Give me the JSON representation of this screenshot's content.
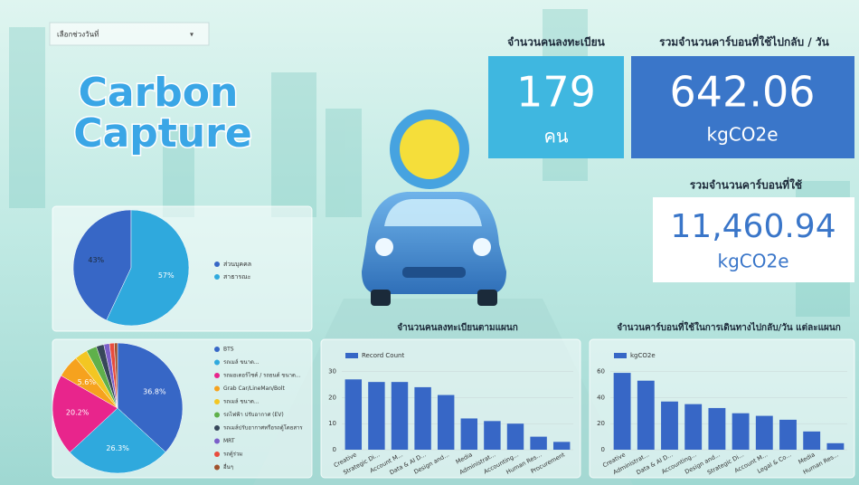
{
  "filter": {
    "label": "เลือกช่วงวันที่"
  },
  "logo": {
    "line1": "Carbon",
    "line2": "Capture"
  },
  "kpis": [
    {
      "title": "จำนวนคนลงทะเบียน",
      "value": "179",
      "unit": "คน"
    },
    {
      "title": "รวมจำนวนคาร์บอนที่ใช้ไปกลับ / วัน",
      "value": "642.06",
      "unit": "kgCO2e"
    },
    {
      "title": "รวมจำนวนคาร์บอนที่ใช้",
      "value": "11,460.94",
      "unit": "kgCO2e"
    }
  ],
  "chart_data": [
    {
      "type": "pie",
      "categories": [
        "ส่วนบุคคล",
        "สาธารณะ"
      ],
      "values": [
        43,
        57
      ],
      "value_labels": [
        "43%",
        "57%"
      ],
      "colors": [
        "#3767c6",
        "#2fa9dd"
      ],
      "clockwise": false
    },
    {
      "type": "pie",
      "categories": [
        "BTS",
        "รถเมล์ ขนาด...",
        "รถมอเตอร์ไซค์ / รถยนต์ ขนาด...",
        "Grab Car/LineMan/Bolt",
        "รถเมล์ ขนาด...",
        "รถไฟฟ้า ปรับอากาศ (EV)",
        "รถเมล์ปรับอากาศหรือรถตู้โดยสาร",
        "MRT",
        "รถตู้ร่วม",
        "อื่นๆ"
      ],
      "values": [
        36.8,
        26.3,
        20.2,
        5.6,
        3.2,
        2.6,
        1.9,
        1.4,
        1.2,
        0.8
      ],
      "value_labels": [
        "36.8%",
        "26.3%",
        "20.2%",
        "5.6%",
        null,
        null,
        null,
        null,
        null,
        null
      ],
      "colors": [
        "#3767c6",
        "#2fa9dd",
        "#e8258c",
        "#f6a21e",
        "#f3c622",
        "#5fb04b",
        "#37475a",
        "#7b5fc9",
        "#e84c3d",
        "#a0522d"
      ],
      "clockwise": true
    },
    {
      "type": "bar",
      "title": "จำนวนคนลงทะเบียนตามแผนก",
      "categories": [
        "Creative",
        "Strategic Di...",
        "Account M...",
        "Data & AI D...",
        "Design and...",
        "Media",
        "Administrat...",
        "Accounting...",
        "Human Res...",
        "Procurement"
      ],
      "series": [
        {
          "name": "Record Count",
          "color": "#3767c6",
          "values": [
            27,
            26,
            26,
            24,
            21,
            12,
            11,
            10,
            5,
            3
          ]
        }
      ],
      "ylim": [
        0,
        33
      ],
      "yticks": [
        0,
        10,
        20,
        30
      ],
      "grid": true
    },
    {
      "type": "bar",
      "title": "จำนวนคาร์บอนที่ใช้ในการเดินทางไปกลับ/วัน แต่ละแผนก",
      "categories": [
        "Creative",
        "Administrat...",
        "Data & AI D...",
        "Accounting...",
        "Design and...",
        "Strategic Di...",
        "Account M...",
        "Legal & Co...",
        "Media",
        "Human Res..."
      ],
      "series": [
        {
          "name": "kgCO2e",
          "color": "#3767c6",
          "values": [
            59,
            53,
            37,
            35,
            32,
            28,
            26,
            23,
            14,
            5
          ]
        }
      ],
      "ylim": [
        0,
        66
      ],
      "yticks": [
        0,
        20,
        40,
        60
      ],
      "grid": true
    }
  ]
}
